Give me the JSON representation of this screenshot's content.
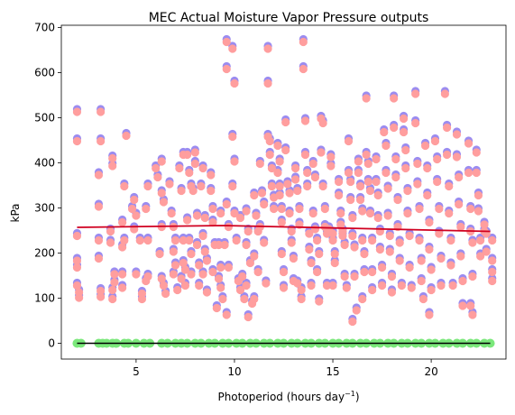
{
  "chart_data": {
    "type": "scatter",
    "title": "MEC Actual Moisture Vapor Pressure outputs",
    "xlabel_base": "Photoperiod (hours day",
    "xlabel_exp": "−1",
    "xlabel_close": ")",
    "ylabel": "kPa",
    "xlim": [
      1.2,
      23.8
    ],
    "ylim": [
      -35,
      705
    ],
    "xticks": [
      5,
      10,
      15,
      20
    ],
    "yticks": [
      0,
      100,
      200,
      300,
      400,
      500,
      600,
      700
    ],
    "grid": false,
    "legend": "none",
    "colors": {
      "back_points": "#9b8cf0",
      "front_points": "#ff9e9e",
      "zero_points": "#7be87b",
      "zero_line": "#000000",
      "trend_line": "#d00020"
    },
    "trend_line": {
      "x": [
        2.0,
        9.5,
        23.0
      ],
      "y": [
        257,
        261,
        248
      ]
    },
    "zero_line": {
      "x": [
        2.0,
        23.0
      ],
      "y": [
        0,
        0
      ]
    },
    "zero_points_x": [
      2.0,
      2.2,
      3.1,
      3.3,
      3.5,
      3.8,
      4.0,
      4.4,
      4.6,
      5.0,
      5.4,
      5.7,
      6.3,
      6.6,
      7.0,
      7.3,
      7.6,
      8.0,
      8.3,
      8.7,
      9.0,
      9.4,
      9.7,
      10.1,
      10.4,
      10.8,
      11.1,
      11.5,
      11.8,
      12.2,
      12.5,
      12.9,
      13.2,
      13.6,
      13.9,
      14.3,
      14.6,
      15.0,
      15.3,
      15.7,
      16.0,
      16.4,
      16.7,
      17.1,
      17.4,
      17.8,
      18.1,
      18.5,
      18.8,
      19.2,
      19.5,
      19.9,
      20.2,
      20.6,
      20.9,
      21.3,
      21.6,
      22.0,
      22.3,
      22.7,
      23.0
    ],
    "points": [
      [
        2.0,
        515
      ],
      [
        2.0,
        450
      ],
      [
        2.0,
        240
      ],
      [
        2.0,
        185
      ],
      [
        2.0,
        170
      ],
      [
        2.0,
        130
      ],
      [
        2.1,
        115
      ],
      [
        2.1,
        103
      ],
      [
        3.2,
        515
      ],
      [
        3.2,
        450
      ],
      [
        3.1,
        375
      ],
      [
        3.1,
        305
      ],
      [
        3.1,
        230
      ],
      [
        3.1,
        190
      ],
      [
        3.2,
        118
      ],
      [
        3.2,
        105
      ],
      [
        3.8,
        412
      ],
      [
        3.8,
        395
      ],
      [
        3.7,
        250
      ],
      [
        3.7,
        225
      ],
      [
        3.9,
        155
      ],
      [
        3.9,
        137
      ],
      [
        3.8,
        120
      ],
      [
        3.8,
        100
      ],
      [
        4.3,
        215
      ],
      [
        4.3,
        155
      ],
      [
        4.5,
        462
      ],
      [
        4.4,
        350
      ],
      [
        4.3,
        270
      ],
      [
        4.4,
        230
      ],
      [
        4.3,
        125
      ],
      [
        4.9,
        320
      ],
      [
        4.8,
        300
      ],
      [
        5.0,
        285
      ],
      [
        4.9,
        255
      ],
      [
        5.2,
        230
      ],
      [
        5.3,
        112
      ],
      [
        5.3,
        100
      ],
      [
        5.0,
        155
      ],
      [
        5.6,
        350
      ],
      [
        5.5,
        300
      ],
      [
        5.6,
        230
      ],
      [
        5.6,
        150
      ],
      [
        5.5,
        140
      ],
      [
        6.0,
        390
      ],
      [
        6.1,
        370
      ],
      [
        6.3,
        405
      ],
      [
        6.3,
        335
      ],
      [
        6.4,
        315
      ],
      [
        6.3,
        260
      ],
      [
        6.2,
        200
      ],
      [
        6.3,
        145
      ],
      [
        6.4,
        130
      ],
      [
        6.5,
        112
      ],
      [
        6.7,
        355
      ],
      [
        6.8,
        290
      ],
      [
        6.9,
        260
      ],
      [
        6.9,
        205
      ],
      [
        7.0,
        230
      ],
      [
        7.0,
        175
      ],
      [
        6.9,
        155
      ],
      [
        7.1,
        120
      ],
      [
        7.2,
        390
      ],
      [
        7.4,
        420
      ],
      [
        7.3,
        340
      ],
      [
        7.4,
        230
      ],
      [
        7.4,
        180
      ],
      [
        7.5,
        165
      ],
      [
        7.3,
        145
      ],
      [
        7.5,
        130
      ],
      [
        7.6,
        420
      ],
      [
        7.7,
        380
      ],
      [
        7.8,
        350
      ],
      [
        7.6,
        275
      ],
      [
        7.7,
        230
      ],
      [
        7.8,
        200
      ],
      [
        7.8,
        155
      ],
      [
        8.0,
        425
      ],
      [
        8.0,
        400
      ],
      [
        7.9,
        340
      ],
      [
        8.1,
        285
      ],
      [
        8.1,
        220
      ],
      [
        8.2,
        175
      ],
      [
        8.2,
        130
      ],
      [
        8.4,
        390
      ],
      [
        8.3,
        350
      ],
      [
        8.5,
        280
      ],
      [
        8.4,
        240
      ],
      [
        8.5,
        205
      ],
      [
        8.6,
        185
      ],
      [
        8.4,
        155
      ],
      [
        8.6,
        115
      ],
      [
        8.8,
        375
      ],
      [
        8.8,
        340
      ],
      [
        8.9,
        300
      ],
      [
        8.9,
        270
      ],
      [
        9.0,
        220
      ],
      [
        8.9,
        160
      ],
      [
        9.1,
        80
      ],
      [
        9.3,
        290
      ],
      [
        9.2,
        220
      ],
      [
        9.3,
        170
      ],
      [
        9.2,
        145
      ],
      [
        9.3,
        125
      ],
      [
        9.4,
        100
      ],
      [
        9.6,
        670
      ],
      [
        9.6,
        610
      ],
      [
        9.6,
        310
      ],
      [
        9.7,
        260
      ],
      [
        9.5,
        220
      ],
      [
        9.7,
        170
      ],
      [
        9.6,
        65
      ],
      [
        9.9,
        655
      ],
      [
        10.0,
        578
      ],
      [
        9.9,
        460
      ],
      [
        10.0,
        405
      ],
      [
        9.9,
        350
      ],
      [
        10.0,
        290
      ],
      [
        10.1,
        230
      ],
      [
        10.3,
        280
      ],
      [
        10.2,
        140
      ],
      [
        10.3,
        120
      ],
      [
        10.4,
        150
      ],
      [
        10.5,
        100
      ],
      [
        10.6,
        295
      ],
      [
        10.7,
        250
      ],
      [
        10.6,
        220
      ],
      [
        10.8,
        180
      ],
      [
        10.6,
        130
      ],
      [
        10.7,
        60
      ],
      [
        10.9,
        90
      ],
      [
        11.0,
        330
      ],
      [
        11.1,
        285
      ],
      [
        11.2,
        250
      ],
      [
        11.0,
        195
      ],
      [
        11.2,
        160
      ],
      [
        11.0,
        100
      ],
      [
        11.3,
        400
      ],
      [
        11.4,
        335
      ],
      [
        11.5,
        310
      ],
      [
        11.3,
        260
      ],
      [
        11.5,
        225
      ],
      [
        11.6,
        135
      ],
      [
        11.7,
        655
      ],
      [
        11.7,
        578
      ],
      [
        11.7,
        460
      ],
      [
        11.8,
        450
      ],
      [
        11.8,
        420
      ],
      [
        11.9,
        390
      ],
      [
        11.9,
        350
      ],
      [
        12.0,
        325
      ],
      [
        12.0,
        300
      ],
      [
        12.2,
        440
      ],
      [
        12.3,
        405
      ],
      [
        12.2,
        380
      ],
      [
        12.3,
        350
      ],
      [
        12.3,
        330
      ],
      [
        12.4,
        300
      ],
      [
        12.4,
        270
      ],
      [
        12.4,
        200
      ],
      [
        12.5,
        160
      ],
      [
        12.5,
        125
      ],
      [
        12.6,
        492
      ],
      [
        12.6,
        430
      ],
      [
        12.7,
        355
      ],
      [
        12.8,
        335
      ],
      [
        12.8,
        290
      ],
      [
        12.9,
        250
      ],
      [
        12.9,
        225
      ],
      [
        13.0,
        190
      ],
      [
        13.0,
        140
      ],
      [
        13.1,
        390
      ],
      [
        13.1,
        365
      ],
      [
        13.2,
        340
      ],
      [
        13.3,
        300
      ],
      [
        13.3,
        265
      ],
      [
        13.2,
        135
      ],
      [
        13.4,
        120
      ],
      [
        13.4,
        100
      ],
      [
        13.5,
        670
      ],
      [
        13.5,
        610
      ],
      [
        13.6,
        495
      ],
      [
        13.6,
        420
      ],
      [
        13.7,
        380
      ],
      [
        13.7,
        350
      ],
      [
        13.8,
        245
      ],
      [
        13.8,
        210
      ],
      [
        13.9,
        180
      ],
      [
        13.9,
        130
      ],
      [
        14.0,
        400
      ],
      [
        14.1,
        370
      ],
      [
        14.0,
        290
      ],
      [
        14.1,
        255
      ],
      [
        14.2,
        230
      ],
      [
        14.3,
        200
      ],
      [
        14.2,
        160
      ],
      [
        14.3,
        95
      ],
      [
        14.4,
        500
      ],
      [
        14.5,
        490
      ],
      [
        14.4,
        425
      ],
      [
        14.5,
        350
      ],
      [
        14.6,
        300
      ],
      [
        14.6,
        260
      ],
      [
        14.7,
        245
      ],
      [
        14.7,
        130
      ],
      [
        14.9,
        415
      ],
      [
        14.9,
        395
      ],
      [
        14.8,
        255
      ],
      [
        15.0,
        245
      ],
      [
        15.0,
        230
      ],
      [
        15.1,
        200
      ],
      [
        15.1,
        180
      ],
      [
        15.0,
        130
      ],
      [
        15.3,
        360
      ],
      [
        15.3,
        330
      ],
      [
        15.4,
        290
      ],
      [
        15.4,
        265
      ],
      [
        15.5,
        250
      ],
      [
        15.5,
        240
      ],
      [
        15.6,
        220
      ],
      [
        15.6,
        150
      ],
      [
        15.7,
        125
      ],
      [
        15.8,
        450
      ],
      [
        15.8,
        380
      ],
      [
        15.9,
        360
      ],
      [
        15.9,
        320
      ],
      [
        16.0,
        280
      ],
      [
        16.0,
        240
      ],
      [
        16.1,
        215
      ],
      [
        16.1,
        150
      ],
      [
        16.0,
        50
      ],
      [
        16.2,
        75
      ],
      [
        16.3,
        405
      ],
      [
        16.3,
        380
      ],
      [
        16.4,
        350
      ],
      [
        16.4,
        320
      ],
      [
        16.5,
        295
      ],
      [
        16.5,
        230
      ],
      [
        16.6,
        200
      ],
      [
        16.6,
        160
      ],
      [
        16.5,
        100
      ],
      [
        16.7,
        545
      ],
      [
        16.7,
        420
      ],
      [
        16.8,
        400
      ],
      [
        16.8,
        360
      ],
      [
        16.9,
        340
      ],
      [
        16.9,
        290
      ],
      [
        17.0,
        230
      ],
      [
        17.0,
        160
      ],
      [
        17.0,
        120
      ],
      [
        17.2,
        410
      ],
      [
        17.2,
        360
      ],
      [
        17.3,
        330
      ],
      [
        17.3,
        280
      ],
      [
        17.4,
        250
      ],
      [
        17.4,
        210
      ],
      [
        17.5,
        170
      ],
      [
        17.5,
        130
      ],
      [
        17.6,
        470
      ],
      [
        17.7,
        440
      ],
      [
        17.7,
        380
      ],
      [
        17.8,
        345
      ],
      [
        17.8,
        285
      ],
      [
        17.9,
        240
      ],
      [
        17.9,
        205
      ],
      [
        18.0,
        150
      ],
      [
        18.0,
        115
      ],
      [
        18.1,
        545
      ],
      [
        18.1,
        480
      ],
      [
        18.2,
        410
      ],
      [
        18.2,
        370
      ],
      [
        18.3,
        320
      ],
      [
        18.3,
        260
      ],
      [
        18.4,
        225
      ],
      [
        18.4,
        185
      ],
      [
        18.5,
        130
      ],
      [
        18.6,
        500
      ],
      [
        18.6,
        470
      ],
      [
        18.7,
        430
      ],
      [
        18.7,
        390
      ],
      [
        18.8,
        340
      ],
      [
        18.8,
        290
      ],
      [
        18.9,
        240
      ],
      [
        18.9,
        170
      ],
      [
        19.0,
        125
      ],
      [
        19.2,
        555
      ],
      [
        19.2,
        490
      ],
      [
        19.3,
        400
      ],
      [
        19.3,
        355
      ],
      [
        19.4,
        300
      ],
      [
        19.4,
        230
      ],
      [
        19.5,
        185
      ],
      [
        19.5,
        140
      ],
      [
        19.6,
        100
      ],
      [
        19.7,
        440
      ],
      [
        19.8,
        390
      ],
      [
        19.8,
        330
      ],
      [
        19.9,
        270
      ],
      [
        19.9,
        210
      ],
      [
        20.0,
        165
      ],
      [
        20.0,
        120
      ],
      [
        19.9,
        65
      ],
      [
        20.2,
        450
      ],
      [
        20.3,
        410
      ],
      [
        20.3,
        360
      ],
      [
        20.4,
        300
      ],
      [
        20.4,
        245
      ],
      [
        20.5,
        190
      ],
      [
        20.5,
        130
      ],
      [
        20.7,
        555
      ],
      [
        20.8,
        480
      ],
      [
        20.8,
        420
      ],
      [
        20.9,
        350
      ],
      [
        20.9,
        290
      ],
      [
        21.0,
        230
      ],
      [
        21.0,
        175
      ],
      [
        21.1,
        130
      ],
      [
        21.3,
        465
      ],
      [
        21.3,
        415
      ],
      [
        21.4,
        370
      ],
      [
        21.4,
        310
      ],
      [
        21.5,
        260
      ],
      [
        21.5,
        195
      ],
      [
        21.6,
        140
      ],
      [
        21.6,
        85
      ],
      [
        21.9,
        445
      ],
      [
        21.9,
        380
      ],
      [
        22.0,
        300
      ],
      [
        22.0,
        250
      ],
      [
        22.1,
        225
      ],
      [
        22.1,
        150
      ],
      [
        22.0,
        85
      ],
      [
        22.1,
        65
      ],
      [
        22.3,
        425
      ],
      [
        22.3,
        380
      ],
      [
        22.4,
        330
      ],
      [
        22.4,
        295
      ],
      [
        22.5,
        230
      ],
      [
        22.5,
        195
      ],
      [
        22.7,
        265
      ],
      [
        22.7,
        250
      ],
      [
        22.8,
        245
      ],
      [
        22.8,
        205
      ],
      [
        23.1,
        230
      ],
      [
        23.1,
        185
      ],
      [
        23.1,
        160
      ],
      [
        23.1,
        140
      ]
    ]
  }
}
